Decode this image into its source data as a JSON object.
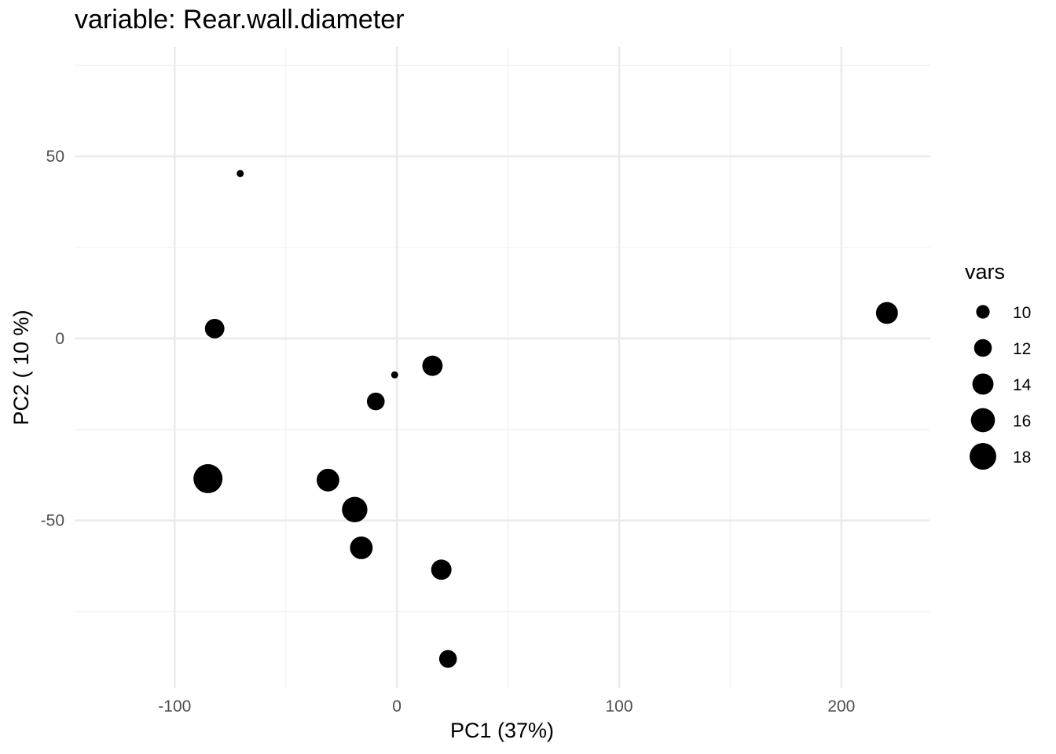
{
  "chart_data": {
    "type": "scatter",
    "title": "variable: Rear.wall.diameter",
    "xlabel": "PC1 (37%)",
    "ylabel": "PC2 ( 10 %)",
    "xlim": [
      -145,
      240
    ],
    "ylim": [
      -96,
      80
    ],
    "x_ticks": [
      -100,
      0,
      100,
      200
    ],
    "x_tick_labels": [
      "-100",
      "0",
      "100",
      "200"
    ],
    "y_ticks": [
      -50,
      0,
      50
    ],
    "y_tick_labels": [
      "-50",
      "0",
      "50"
    ],
    "grid": true,
    "size_variable": "vars",
    "size_range": [
      8,
      20
    ],
    "points": [
      {
        "x": -70.5,
        "y": 45.3,
        "size": 8
      },
      {
        "x": -82,
        "y": 2.7,
        "size": 13
      },
      {
        "x": -85,
        "y": -38.5,
        "size": 20
      },
      {
        "x": -31,
        "y": -38.9,
        "size": 15
      },
      {
        "x": -19,
        "y": -47,
        "size": 17
      },
      {
        "x": -16,
        "y": -57.5,
        "size": 15
      },
      {
        "x": -9.5,
        "y": -17.3,
        "size": 12
      },
      {
        "x": -1,
        "y": -10,
        "size": 8
      },
      {
        "x": 16,
        "y": -7.5,
        "size": 13.5
      },
      {
        "x": 20,
        "y": -63.5,
        "size": 13.5
      },
      {
        "x": 23,
        "y": -88,
        "size": 12
      },
      {
        "x": 220.5,
        "y": 7,
        "size": 14.5
      }
    ],
    "legend": {
      "title": "vars",
      "position": "right",
      "entries": [
        {
          "label": "10",
          "size": 10
        },
        {
          "label": "12",
          "size": 12
        },
        {
          "label": "14",
          "size": 14
        },
        {
          "label": "16",
          "size": 16
        },
        {
          "label": "18",
          "size": 18
        }
      ]
    },
    "point_color": "#000000"
  }
}
